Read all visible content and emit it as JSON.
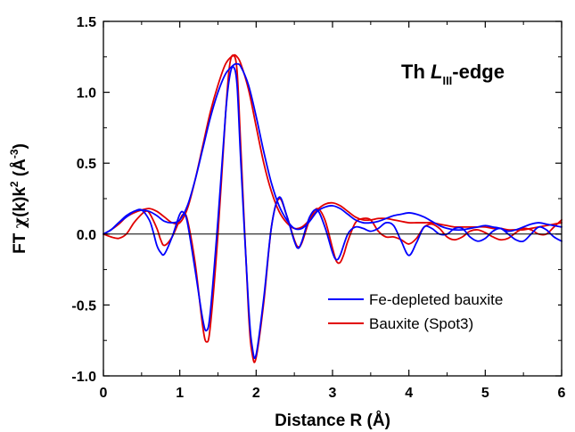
{
  "chart_data": {
    "type": "line",
    "xlabel": "Distance R (Å)",
    "ylabel": {
      "prefix": "FT ",
      "chi": "χ",
      "mid": "(k)k",
      "exp": "2",
      "unit_open": " (Å",
      "unit_exp": "-3",
      "unit_close": ")"
    },
    "annotation": {
      "pre": "Th ",
      "italic": "L",
      "sub": "III",
      "post": "-edge"
    },
    "xlim": [
      0,
      6
    ],
    "ylim": [
      -1.0,
      1.5
    ],
    "x_ticks": [
      "0",
      "1",
      "2",
      "3",
      "4",
      "5",
      "6"
    ],
    "x_tick_values": [
      0,
      1,
      2,
      3,
      4,
      5,
      6
    ],
    "y_ticks": [
      "-1.0",
      "-0.5",
      "0.0",
      "0.5",
      "1.0",
      "1.5"
    ],
    "y_tick_values": [
      -1.0,
      -0.5,
      0.0,
      0.5,
      1.0,
      1.5
    ],
    "grid": false,
    "zero_line": true,
    "legend_position": "lower-right",
    "series": [
      {
        "name": "Fe-depleted bauxite",
        "color": "#0000ff",
        "magnitude": {
          "x": [
            0,
            0.1,
            0.2,
            0.3,
            0.4,
            0.5,
            0.6,
            0.7,
            0.8,
            0.9,
            1.0,
            1.1,
            1.2,
            1.3,
            1.4,
            1.5,
            1.6,
            1.7,
            1.75,
            1.8,
            1.9,
            2.0,
            2.1,
            2.2,
            2.3,
            2.4,
            2.5,
            2.6,
            2.7,
            2.8,
            2.9,
            3.0,
            3.1,
            3.2,
            3.3,
            3.4,
            3.5,
            3.6,
            3.7,
            3.8,
            3.9,
            4.0,
            4.1,
            4.2,
            4.3,
            4.4,
            4.5,
            4.6,
            4.7,
            4.8,
            4.9,
            5.0,
            5.1,
            5.2,
            5.3,
            5.4,
            5.5,
            5.6,
            5.7,
            5.8,
            5.9,
            6.0
          ],
          "y": [
            0.0,
            0.03,
            0.08,
            0.12,
            0.16,
            0.17,
            0.16,
            0.13,
            0.09,
            0.08,
            0.1,
            0.2,
            0.38,
            0.6,
            0.82,
            1.0,
            1.13,
            1.19,
            1.2,
            1.18,
            1.05,
            0.83,
            0.58,
            0.36,
            0.2,
            0.1,
            0.04,
            0.04,
            0.09,
            0.16,
            0.19,
            0.2,
            0.18,
            0.14,
            0.1,
            0.08,
            0.08,
            0.09,
            0.11,
            0.13,
            0.14,
            0.15,
            0.14,
            0.12,
            0.09,
            0.06,
            0.04,
            0.03,
            0.03,
            0.04,
            0.05,
            0.06,
            0.05,
            0.04,
            0.02,
            0.03,
            0.05,
            0.07,
            0.08,
            0.07,
            0.06,
            0.05
          ]
        },
        "real": {
          "x": [
            0,
            0.1,
            0.2,
            0.3,
            0.4,
            0.5,
            0.6,
            0.65,
            0.7,
            0.75,
            0.8,
            0.9,
            1.0,
            1.05,
            1.1,
            1.2,
            1.3,
            1.35,
            1.4,
            1.5,
            1.6,
            1.65,
            1.7,
            1.75,
            1.8,
            1.9,
            1.95,
            2.0,
            2.1,
            2.2,
            2.3,
            2.4,
            2.5,
            2.55,
            2.6,
            2.7,
            2.8,
            2.9,
            3.0,
            3.05,
            3.1,
            3.2,
            3.3,
            3.4,
            3.5,
            3.6,
            3.7,
            3.8,
            3.9,
            4.0,
            4.1,
            4.2,
            4.3,
            4.4,
            4.5,
            4.6,
            4.7,
            4.8,
            4.9,
            5.0,
            5.1,
            5.2,
            5.3,
            5.4,
            5.5,
            5.6,
            5.7,
            5.8,
            5.9,
            6.0
          ],
          "y": [
            0.0,
            0.03,
            0.08,
            0.13,
            0.16,
            0.17,
            0.1,
            0.02,
            -0.08,
            -0.13,
            -0.14,
            -0.02,
            0.14,
            0.15,
            0.08,
            -0.25,
            -0.6,
            -0.68,
            -0.55,
            0.1,
            0.85,
            1.1,
            1.18,
            1.05,
            0.5,
            -0.5,
            -0.8,
            -0.85,
            -0.45,
            0.05,
            0.26,
            0.13,
            -0.05,
            -0.1,
            -0.05,
            0.12,
            0.17,
            0.05,
            -0.13,
            -0.18,
            -0.15,
            0.0,
            0.05,
            0.04,
            0.02,
            0.04,
            0.08,
            0.06,
            -0.05,
            -0.15,
            -0.06,
            0.05,
            0.04,
            0.0,
            0.0,
            0.04,
            0.04,
            -0.02,
            -0.05,
            -0.03,
            0.02,
            0.04,
            0.0,
            -0.04,
            -0.05,
            0.0,
            0.05,
            0.03,
            -0.02,
            -0.05
          ]
        }
      },
      {
        "name": "Bauxite (Spot3)",
        "color": "#e10000",
        "magnitude": {
          "x": [
            0,
            0.1,
            0.2,
            0.3,
            0.4,
            0.5,
            0.6,
            0.7,
            0.8,
            0.9,
            1.0,
            1.1,
            1.2,
            1.3,
            1.4,
            1.5,
            1.6,
            1.7,
            1.75,
            1.8,
            1.9,
            2.0,
            2.1,
            2.2,
            2.3,
            2.4,
            2.5,
            2.6,
            2.7,
            2.8,
            2.9,
            3.0,
            3.1,
            3.2,
            3.3,
            3.4,
            3.5,
            3.6,
            3.7,
            3.8,
            3.9,
            4.0,
            4.1,
            4.2,
            4.3,
            4.4,
            4.5,
            4.6,
            4.7,
            4.8,
            4.9,
            5.0,
            5.1,
            5.2,
            5.3,
            5.4,
            5.5,
            5.6,
            5.7,
            5.8,
            5.9,
            6.0
          ],
          "y": [
            0.0,
            0.03,
            0.07,
            0.12,
            0.15,
            0.17,
            0.18,
            0.16,
            0.12,
            0.08,
            0.08,
            0.18,
            0.38,
            0.62,
            0.86,
            1.05,
            1.2,
            1.26,
            1.25,
            1.2,
            1.02,
            0.76,
            0.5,
            0.3,
            0.16,
            0.08,
            0.04,
            0.05,
            0.1,
            0.17,
            0.21,
            0.22,
            0.2,
            0.16,
            0.12,
            0.1,
            0.1,
            0.11,
            0.11,
            0.1,
            0.09,
            0.08,
            0.08,
            0.08,
            0.08,
            0.07,
            0.06,
            0.05,
            0.05,
            0.05,
            0.05,
            0.05,
            0.04,
            0.04,
            0.03,
            0.03,
            0.03,
            0.04,
            0.05,
            0.06,
            0.07,
            0.08
          ]
        },
        "real": {
          "x": [
            0,
            0.1,
            0.2,
            0.3,
            0.4,
            0.5,
            0.55,
            0.6,
            0.7,
            0.75,
            0.8,
            0.9,
            1.0,
            1.05,
            1.1,
            1.2,
            1.3,
            1.35,
            1.4,
            1.5,
            1.6,
            1.65,
            1.7,
            1.75,
            1.8,
            1.9,
            1.95,
            2.0,
            2.1,
            2.2,
            2.3,
            2.4,
            2.5,
            2.55,
            2.6,
            2.7,
            2.8,
            2.9,
            3.0,
            3.05,
            3.1,
            3.15,
            3.2,
            3.3,
            3.4,
            3.5,
            3.6,
            3.7,
            3.8,
            3.9,
            4.0,
            4.1,
            4.2,
            4.3,
            4.4,
            4.5,
            4.6,
            4.7,
            4.8,
            4.9,
            5.0,
            5.1,
            5.2,
            5.3,
            5.4,
            5.5,
            5.6,
            5.7,
            5.8,
            5.9,
            6.0
          ],
          "y": [
            0.0,
            -0.02,
            -0.03,
            0.0,
            0.08,
            0.14,
            0.16,
            0.15,
            0.04,
            -0.04,
            -0.08,
            -0.02,
            0.1,
            0.14,
            0.1,
            -0.2,
            -0.65,
            -0.76,
            -0.65,
            0.0,
            0.85,
            1.18,
            1.26,
            1.15,
            0.6,
            -0.55,
            -0.85,
            -0.87,
            -0.48,
            0.05,
            0.25,
            0.13,
            -0.04,
            -0.09,
            -0.06,
            0.1,
            0.18,
            0.1,
            -0.1,
            -0.19,
            -0.2,
            -0.14,
            -0.05,
            0.08,
            0.11,
            0.1,
            0.02,
            -0.02,
            -0.02,
            -0.04,
            -0.07,
            -0.03,
            0.05,
            0.07,
            0.04,
            -0.02,
            -0.04,
            -0.02,
            0.02,
            0.03,
            0.01,
            -0.02,
            -0.04,
            -0.03,
            0.01,
            0.04,
            0.03,
            0.0,
            0.0,
            0.05,
            0.1
          ]
        }
      }
    ]
  }
}
